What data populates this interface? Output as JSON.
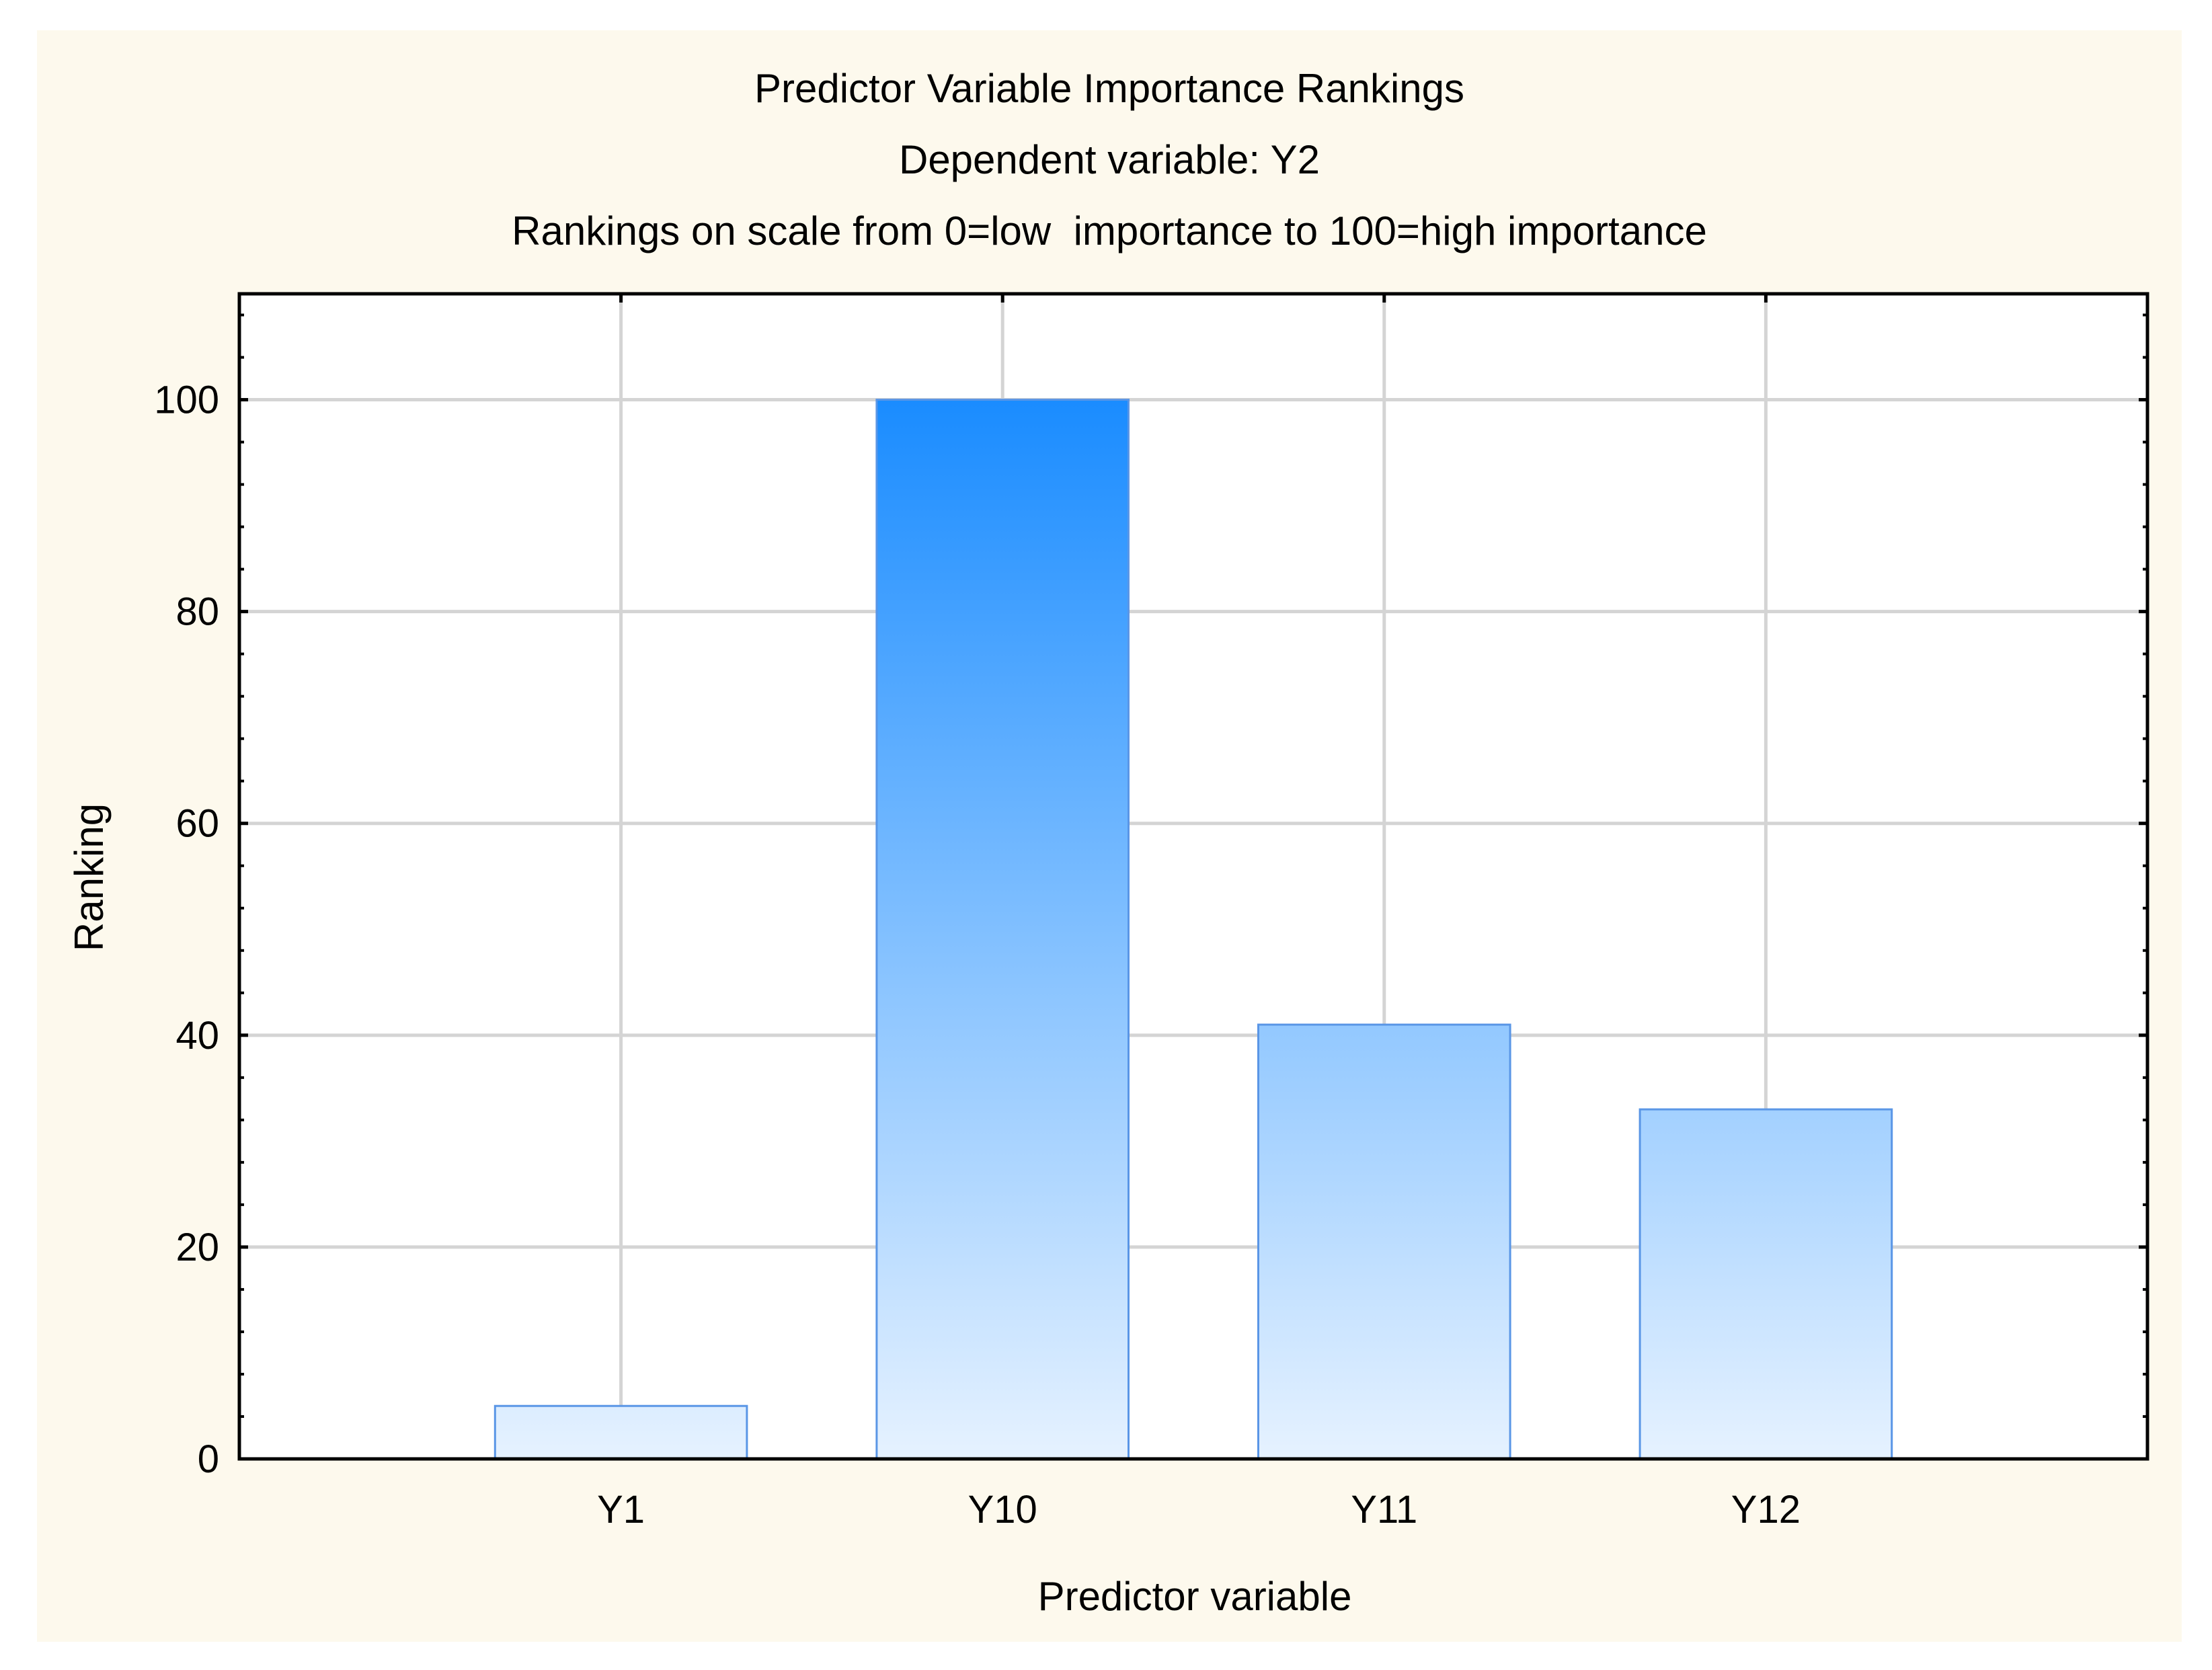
{
  "chart_data": {
    "type": "bar",
    "title": "Predictor Variable Importance Rankings",
    "subtitle": "Dependent variable: Y2",
    "subtitle2": "Rankings on scale from 0=low  importance to 100=high importance",
    "xlabel": "Predictor variable",
    "ylabel": "Ranking",
    "categories": [
      "Y1",
      "Y10",
      "Y11",
      "Y12"
    ],
    "values": [
      5,
      100,
      41,
      33
    ],
    "ylim": [
      0,
      110
    ],
    "yticks": [
      0,
      20,
      40,
      60,
      80,
      100
    ],
    "grid": true,
    "legend": "none",
    "colors": {
      "background": "#fdf9ed",
      "plot_background": "#ffffff",
      "bar_top": "#1a8cff",
      "bar_bottom": "#e6f2ff",
      "bar_edge": "#5a96e6",
      "grid": "#d4d4d4",
      "axis": "#000000"
    }
  }
}
